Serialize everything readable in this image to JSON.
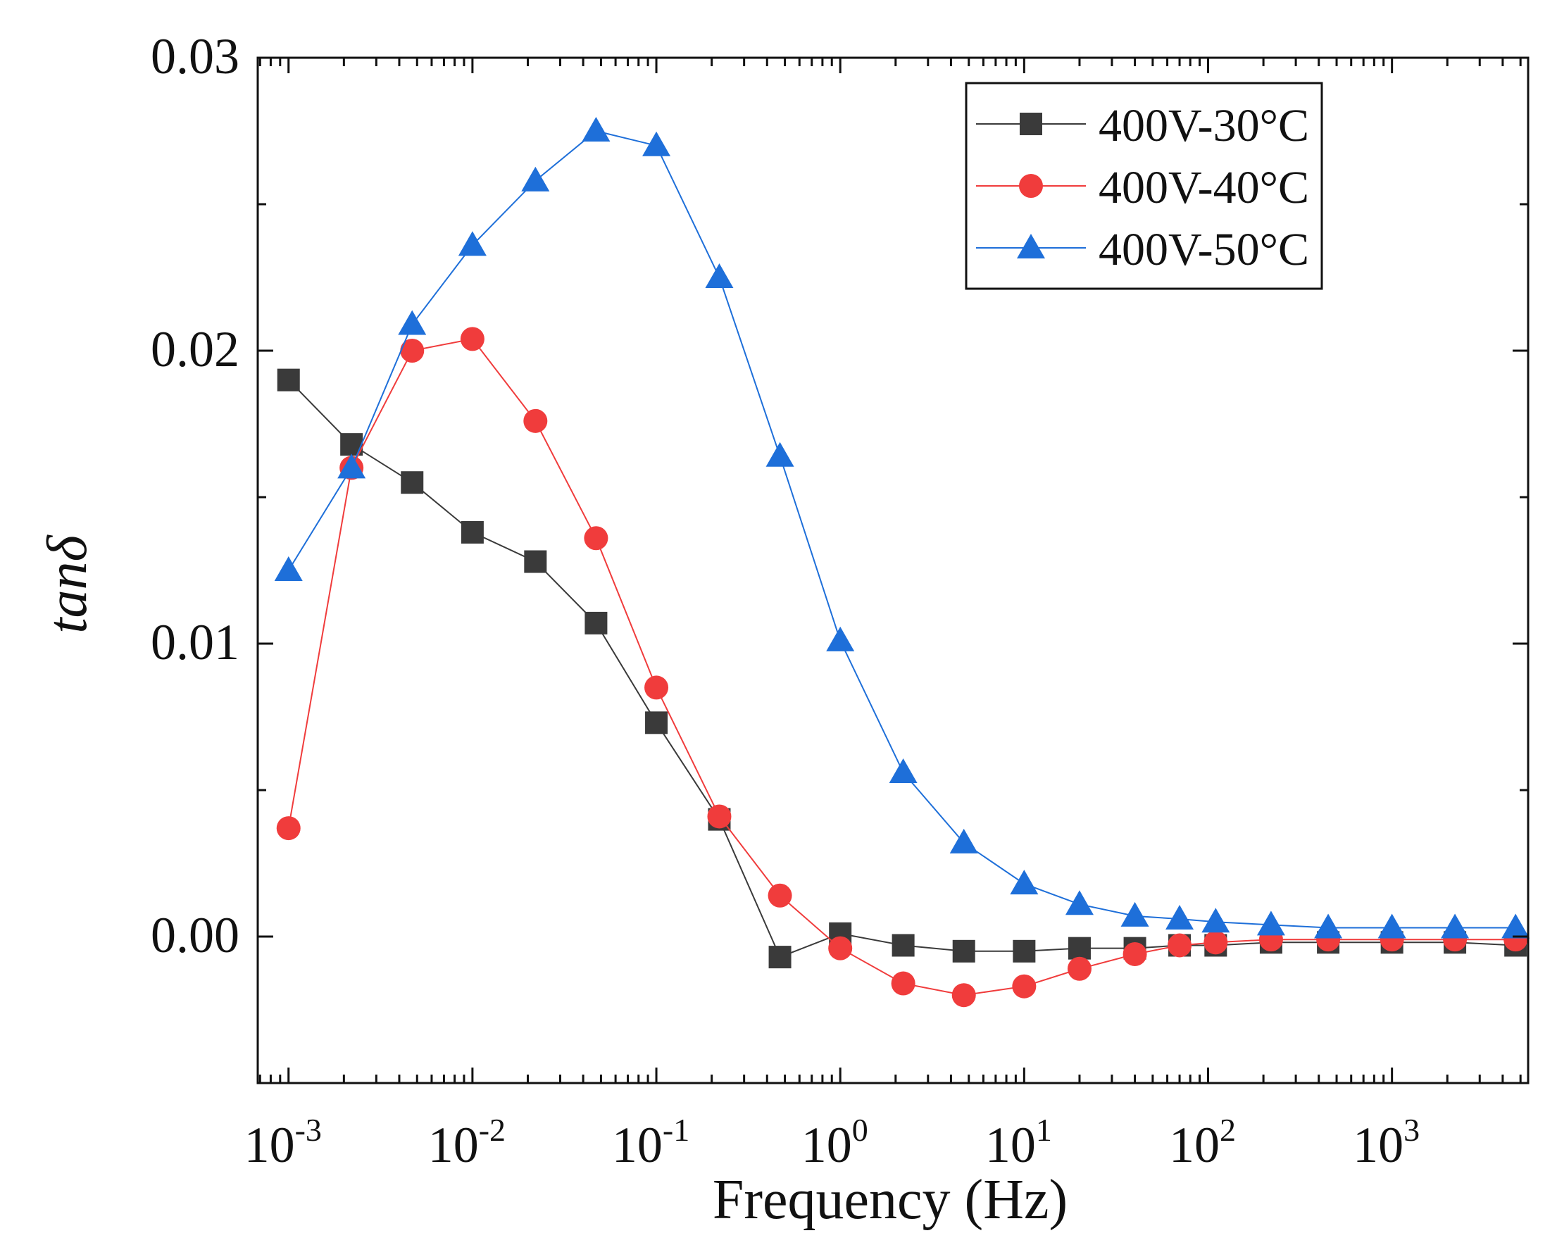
{
  "chart_data": {
    "type": "line",
    "xlabel": "Frequency (Hz)",
    "ylabel": "tanδ",
    "x_scale": "log",
    "xlim": [
      0.00068,
      5500
    ],
    "ylim": [
      -0.005,
      0.03
    ],
    "y_ticks": [
      0.0,
      0.01,
      0.02,
      0.03
    ],
    "y_tick_labels": [
      "0.00",
      "0.01",
      "0.02",
      "0.03"
    ],
    "x_ticks": [
      0.001,
      0.01,
      0.1,
      1,
      10,
      100,
      1000
    ],
    "x_tick_labels": [
      {
        "base": "10",
        "exp": "-3"
      },
      {
        "base": "10",
        "exp": "-2"
      },
      {
        "base": "10",
        "exp": "-1"
      },
      {
        "base": "10",
        "exp": "0"
      },
      {
        "base": "10",
        "exp": "1"
      },
      {
        "base": "10",
        "exp": "2"
      },
      {
        "base": "10",
        "exp": "3"
      }
    ],
    "legend_position": "top-right",
    "series": [
      {
        "name": "400V-30°C",
        "color": "#3a3a3a",
        "marker": "square",
        "x": [
          0.001,
          0.0022,
          0.0047,
          0.01,
          0.022,
          0.047,
          0.1,
          0.22,
          0.47,
          1,
          2.2,
          4.7,
          10,
          20,
          40,
          70,
          110,
          220,
          450,
          1000,
          2200,
          4700
        ],
        "y": [
          0.019,
          0.0168,
          0.0155,
          0.0138,
          0.0128,
          0.0107,
          0.0073,
          0.004,
          -0.0007,
          0.0001,
          -0.0003,
          -0.0005,
          -0.0005,
          -0.0004,
          -0.0004,
          -0.0003,
          -0.0003,
          -0.0002,
          -0.0002,
          -0.0002,
          -0.0002,
          -0.0003
        ]
      },
      {
        "name": "400V-40°C",
        "color": "#f03c3c",
        "marker": "circle",
        "x": [
          0.001,
          0.0022,
          0.0047,
          0.01,
          0.022,
          0.047,
          0.1,
          0.22,
          0.47,
          1,
          2.2,
          4.7,
          10,
          20,
          40,
          70,
          110,
          220,
          450,
          1000,
          2200,
          4700
        ],
        "y": [
          0.0037,
          0.016,
          0.02,
          0.0204,
          0.0176,
          0.0136,
          0.0085,
          0.0041,
          0.0014,
          -0.0004,
          -0.0016,
          -0.002,
          -0.0017,
          -0.0011,
          -0.0006,
          -0.0003,
          -0.0002,
          -0.0001,
          -0.0001,
          -0.0001,
          -0.0001,
          -0.0001
        ]
      },
      {
        "name": "400V-50°C",
        "color": "#1e6fd9",
        "marker": "triangle",
        "x": [
          0.001,
          0.0022,
          0.0047,
          0.01,
          0.022,
          0.047,
          0.1,
          0.22,
          0.47,
          1,
          2.2,
          4.7,
          10,
          20,
          40,
          70,
          110,
          220,
          450,
          1000,
          2200,
          4700
        ],
        "y": [
          0.0125,
          0.016,
          0.0209,
          0.0236,
          0.0258,
          0.0275,
          0.027,
          0.0225,
          0.0164,
          0.0101,
          0.0056,
          0.0032,
          0.0018,
          0.0011,
          0.0007,
          0.0006,
          0.0005,
          0.0004,
          0.0003,
          0.0003,
          0.0003,
          0.0003
        ]
      }
    ]
  }
}
